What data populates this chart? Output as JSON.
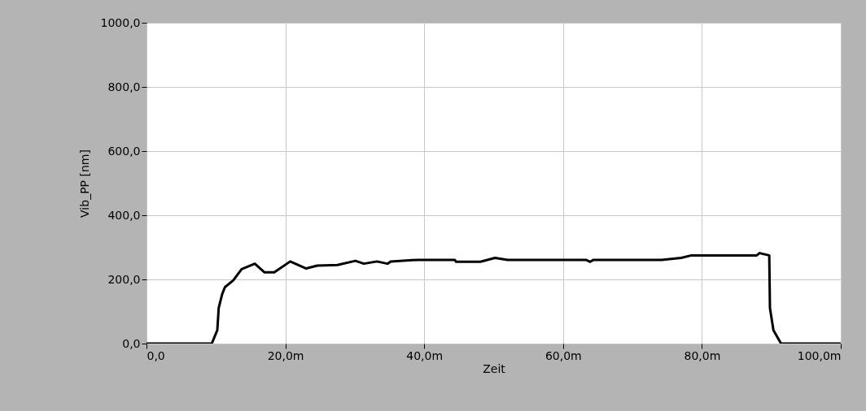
{
  "chart_data": {
    "type": "line",
    "xlabel": "Zeit",
    "ylabel": "Vib_PP [nm]",
    "x": [
      0,
      9.4,
      10.2,
      10.4,
      10.9,
      11.3,
      12.5,
      13.7,
      15.6,
      17.0,
      18.4,
      20.7,
      23.0,
      24.6,
      27.5,
      30.1,
      31.3,
      33.2,
      34.7,
      35.2,
      39.1,
      44.4,
      44.6,
      48.1,
      50.2,
      52.0,
      63.3,
      63.9,
      64.4,
      74.2,
      77.0,
      78.5,
      87.9,
      88.3,
      89.7,
      89.8,
      90.3,
      91.4,
      100
    ],
    "series": [
      {
        "color": "#000000",
        "values": [
          0,
          0,
          42,
          111,
          154,
          176,
          197,
          232,
          249,
          222,
          222,
          256,
          234,
          243,
          245,
          258,
          249,
          256,
          249,
          256,
          261,
          261,
          255,
          255,
          267,
          261,
          261,
          255,
          261,
          261,
          267,
          275,
          275,
          282,
          275,
          111,
          42,
          0,
          0
        ]
      }
    ],
    "xlim": [
      0,
      100
    ],
    "xticks": [
      {
        "value": 0,
        "label": "0,0"
      },
      {
        "value": 20,
        "label": "20,0m"
      },
      {
        "value": 40,
        "label": "40,0m"
      },
      {
        "value": 60,
        "label": "60,0m"
      },
      {
        "value": 80,
        "label": "80,0m"
      },
      {
        "value": 100,
        "label": "100,0m"
      }
    ],
    "ylim": [
      0,
      1000
    ],
    "yticks": [
      {
        "value": 0,
        "label": "0,0"
      },
      {
        "value": 200,
        "label": "200,0"
      },
      {
        "value": 400,
        "label": "400,0"
      },
      {
        "value": 600,
        "label": "600,0"
      },
      {
        "value": 800,
        "label": "800,0"
      },
      {
        "value": 1000,
        "label": "1000,0"
      }
    ],
    "grid": true,
    "marker": "none",
    "line_style": "solid"
  }
}
